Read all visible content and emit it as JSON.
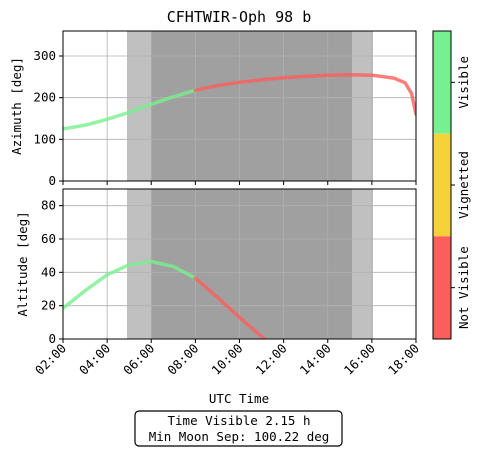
{
  "chart_data": {
    "type": "line",
    "title": "CFHTWIR-Oph 98 b",
    "xlabel": "UTC Time",
    "x_ticks": [
      "02:00",
      "04:00",
      "06:00",
      "08:00",
      "10:00",
      "12:00",
      "14:00",
      "16:00",
      "18:00"
    ],
    "x_range_hours": [
      2,
      18
    ],
    "grid": true,
    "shading": {
      "light": [
        [
          4.9,
          6.0
        ],
        [
          15.1,
          16.05
        ]
      ],
      "dark": [
        [
          6.0,
          15.1
        ]
      ]
    },
    "panels": [
      {
        "name": "azimuth",
        "ylabel": "Azimuth [deg]",
        "ylim": [
          0,
          360
        ],
        "yticks": [
          0,
          100,
          200,
          300
        ],
        "points": [
          [
            2.0,
            125
          ],
          [
            3.0,
            134
          ],
          [
            4.0,
            148
          ],
          [
            5.0,
            165
          ],
          [
            6.0,
            184
          ],
          [
            7.0,
            202
          ],
          [
            8.0,
            218
          ],
          [
            9.0,
            229
          ],
          [
            10.0,
            237
          ],
          [
            11.0,
            243
          ],
          [
            12.0,
            248
          ],
          [
            13.0,
            251
          ],
          [
            14.0,
            254
          ],
          [
            15.0,
            255
          ],
          [
            16.0,
            254
          ],
          [
            17.0,
            247
          ],
          [
            17.5,
            236
          ],
          [
            17.8,
            210
          ],
          [
            18.0,
            160
          ]
        ]
      },
      {
        "name": "altitude",
        "ylabel": "Altitude [deg]",
        "ylim": [
          0,
          90
        ],
        "yticks": [
          0,
          20,
          40,
          60,
          80
        ],
        "points": [
          [
            2.0,
            18.5
          ],
          [
            3.0,
            29
          ],
          [
            4.0,
            38.5
          ],
          [
            5.0,
            44.5
          ],
          [
            6.0,
            46.5
          ],
          [
            7.0,
            43.5
          ],
          [
            8.0,
            36.5
          ],
          [
            9.0,
            25
          ],
          [
            10.0,
            13
          ],
          [
            11.0,
            1.5
          ],
          [
            11.15,
            0
          ]
        ]
      }
    ],
    "segments": [
      {
        "status": "Visible",
        "from": 2.0,
        "to": 8.0
      },
      {
        "status": "Not Visible",
        "from": 8.0,
        "to": 18.0
      }
    ],
    "colorbar": {
      "labels": [
        "Visible",
        "Vignetted",
        "Not Visible"
      ],
      "colors": [
        "#77f08f",
        "#f5d23a",
        "#fb5f5c"
      ]
    },
    "footer": {
      "line1": "Time Visible 2.15 h",
      "line2": "Min Moon Sep: 100.22 deg"
    }
  }
}
